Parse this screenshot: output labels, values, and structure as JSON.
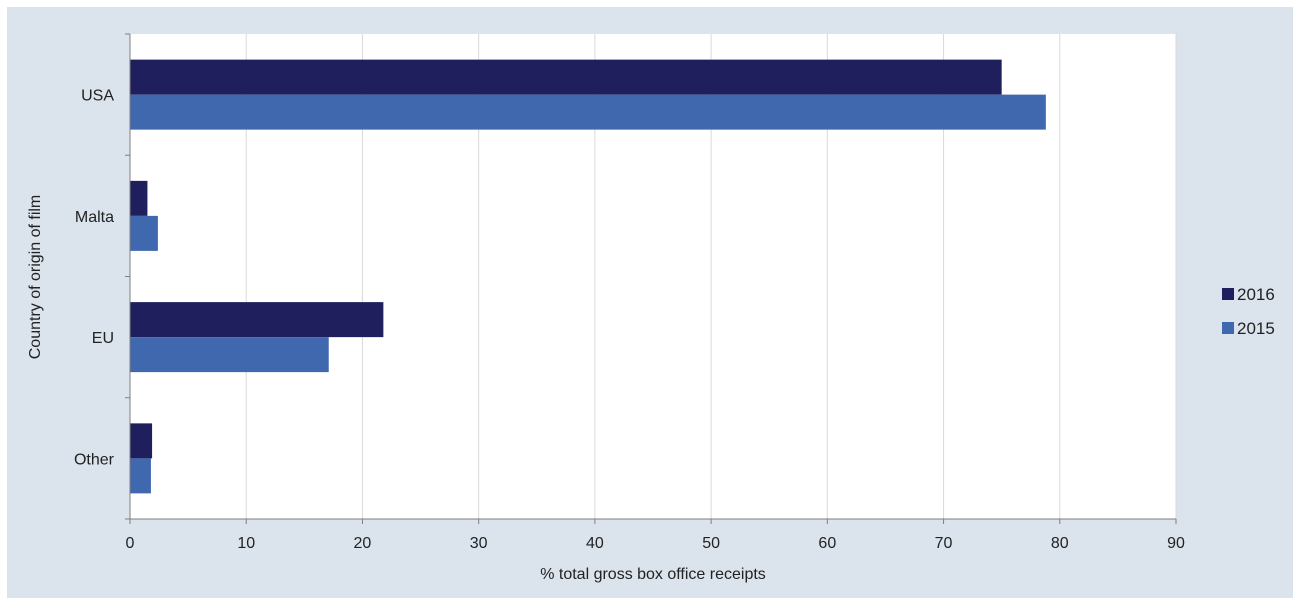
{
  "chart_data": {
    "type": "bar",
    "orientation": "horizontal",
    "categories": [
      "USA",
      "Malta",
      "EU",
      "Other"
    ],
    "series": [
      {
        "name": "2016",
        "color": "#1f1f5e",
        "values": [
          75.0,
          1.5,
          21.8,
          1.9
        ]
      },
      {
        "name": "2015",
        "color": "#3f68ae",
        "values": [
          78.8,
          2.4,
          17.1,
          1.8
        ]
      }
    ],
    "xlabel": "% total gross box office receipts",
    "ylabel": "Country of origin of film",
    "xlim": [
      0,
      90
    ],
    "xticks": [
      0,
      10,
      20,
      30,
      40,
      50,
      60,
      70,
      80,
      90
    ],
    "grid": "vertical",
    "legend": "right"
  },
  "colors": {
    "background": "#dbe3ec",
    "plot_background": "#ffffff",
    "gridline": "#d9d9d9"
  }
}
